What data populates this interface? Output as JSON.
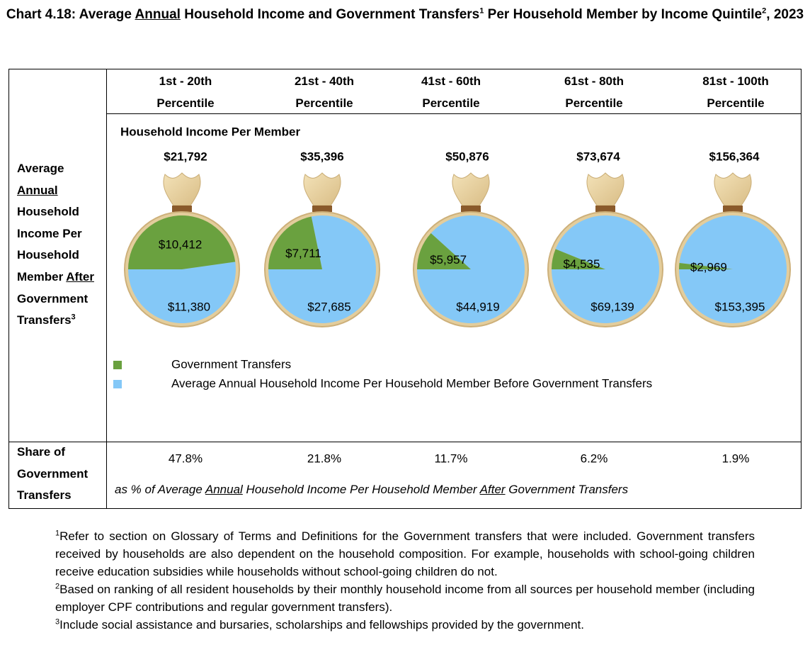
{
  "title": [
    "Chart 4.18: Average ",
    "Annual",
    " Household Income and Government Transfers",
    "1",
    " Per Household Member by Income Quintile",
    "2",
    ", 2023"
  ],
  "row_headers": [
    [
      "Average ",
      "Annual",
      " Household Income Per Household Member ",
      "After",
      " Government Transfers",
      "3"
    ],
    [
      "Share of Government Transfers"
    ]
  ],
  "chart_data": {
    "type": "pie",
    "categories": [
      "1st - 20th Percentile",
      "21st - 40th Percentile",
      "41st - 60th Percentile",
      "61st - 80th Percentile",
      "81st - 100th Percentile"
    ],
    "subtitle": "Household Income Per Member",
    "totals": {
      "values": [
        21792,
        35396,
        50876,
        73674,
        156364
      ],
      "value_labels": [
        "$21,792",
        "$35,396",
        "$50,876",
        "$73,674",
        "$156,364"
      ]
    },
    "series": [
      {
        "name": "Government Transfers",
        "color": "#6aa13f",
        "values": [
          10412,
          7711,
          5957,
          4535,
          2969
        ],
        "value_labels": [
          "$10,412",
          "$7,711",
          "$5,957",
          "$4,535",
          "$2,969"
        ]
      },
      {
        "name": "Average Annual Household Income Per Household Member Before Government Transfers",
        "color": "#84c8f7",
        "values": [
          11380,
          27685,
          44919,
          69139,
          153395
        ],
        "value_labels": [
          "$11,380",
          "$27,685",
          "$44,919",
          "$69,139",
          "$153,395"
        ]
      }
    ],
    "share": {
      "values": [
        47.8,
        21.8,
        11.7,
        6.2,
        1.9
      ],
      "value_labels": [
        "47.8%",
        "21.8%",
        "11.7%",
        "6.2%",
        "1.9%"
      ],
      "note": [
        "as % of Average ",
        "Annual",
        " Household Income Per Household Member ",
        "After",
        " Government Transfers"
      ]
    }
  },
  "footnotes": [
    [
      "1",
      "Refer to section on Glossary of Terms and Definitions for the Government transfers that were included. Government transfers received by households are also dependent on the household composition. For example, households with school-going children receive education subsidies while households without school-going children do not."
    ],
    [
      "2",
      "Based on ranking of all resident households by their monthly household income from all sources per household member (including employer CPF contributions and regular government transfers)."
    ],
    [
      "3",
      "Include social assistance and bursaries, scholarships and fellowships provided by the government."
    ]
  ]
}
